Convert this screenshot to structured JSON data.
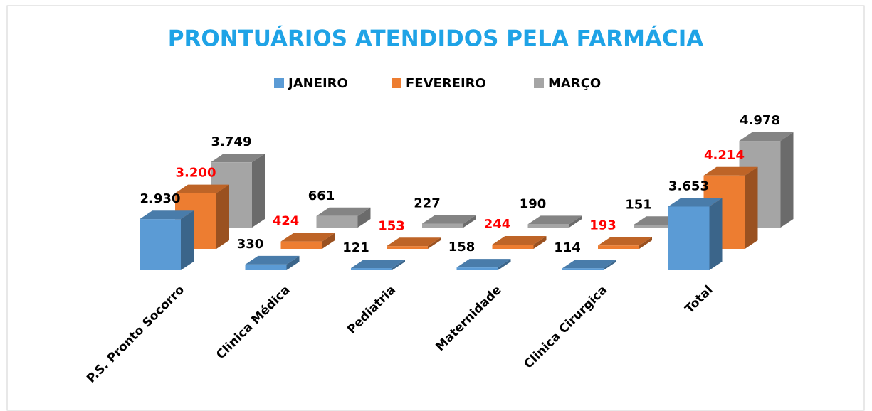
{
  "chart_data": {
    "type": "bar3d",
    "title": "PRONTUÁRIOS ATENDIDOS PELA FARMÁCIA",
    "categories": [
      "P.S. Pronto Socorro",
      "Clinica Médica",
      "Pediatria",
      "Maternidade",
      "Clinica Cirurgica",
      "Total"
    ],
    "series": [
      {
        "name": "JANEIRO",
        "color": "#5b9bd5",
        "label_color": "#000000",
        "values": [
          2930,
          330,
          121,
          158,
          114,
          3653
        ],
        "value_labels": [
          "2.930",
          "330",
          "121",
          "158",
          "114",
          "3.653"
        ]
      },
      {
        "name": "FEVEREIRO",
        "color": "#ed7d31",
        "label_color": "#ff0000",
        "values": [
          3200,
          424,
          153,
          244,
          193,
          4214
        ],
        "value_labels": [
          "3.200",
          "424",
          "153",
          "244",
          "193",
          "4.214"
        ]
      },
      {
        "name": "MARÇO",
        "color": "#a5a5a5",
        "label_color": "#000000",
        "values": [
          3749,
          661,
          227,
          190,
          151,
          4978
        ],
        "value_labels": [
          "3.749",
          "661",
          "227",
          "190",
          "151",
          "4.978"
        ]
      }
    ],
    "legend": "top"
  }
}
